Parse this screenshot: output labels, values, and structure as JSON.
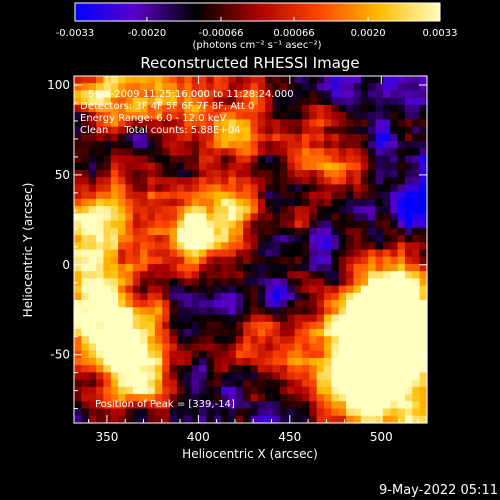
{
  "chart_data": {
    "type": "heatmap",
    "title": "Reconstructed RHESSI Image",
    "xlabel": "Heliocentric X (arcsec)",
    "ylabel": "Heliocentric Y (arcsec)",
    "xlim": [
      332,
      525
    ],
    "ylim": [
      -88,
      105
    ],
    "x_ticks": [
      "350",
      "400",
      "450",
      "500"
    ],
    "x_tick_values": [
      350,
      400,
      450,
      500
    ],
    "y_ticks": [
      "100",
      "50",
      "0",
      "-50"
    ],
    "y_tick_values": [
      100,
      50,
      0,
      -50
    ],
    "colorbar": {
      "ticks": [
        "-0.0033",
        "-0.0020",
        "-0.00066",
        "0.00066",
        "0.0020",
        "0.0033"
      ],
      "tick_values": [
        -0.0033,
        -0.002,
        -0.00066,
        0.00066,
        0.002,
        0.0033
      ],
      "range": [
        -0.0033,
        0.0033
      ],
      "units": "(photons cm⁻² s⁻¹ asec⁻²)",
      "colormap": [
        "#0000ff",
        "#5a00c8",
        "#000000",
        "#aa0000",
        "#ff4400",
        "#ffbb00",
        "#ffffc0"
      ]
    },
    "annotations": {
      "time": "5-Jul-2009 11:25:16.000 to 11:28:24.000",
      "detectors": "Detectors: 3F 4F 5F 6F 7F 8F, Att 0",
      "energy": "Energy Range: 6.0 - 12.0 keV",
      "clean": "Clean     Total counts: 5.88E+04",
      "peak": "Position of Peak = [339,-14]"
    },
    "peak_position": [
      339,
      -14
    ],
    "bright_regions": [
      {
        "x": 339,
        "y": -14,
        "value": 0.0033
      },
      {
        "x": 342,
        "y": 28,
        "value": 0.0028
      },
      {
        "x": 360,
        "y": -42,
        "value": 0.0025
      },
      {
        "x": 365,
        "y": -62,
        "value": 0.0022
      },
      {
        "x": 348,
        "y": 98,
        "value": 0.0018
      },
      {
        "x": 380,
        "y": 96,
        "value": 0.0015
      },
      {
        "x": 392,
        "y": 20,
        "value": 0.0016
      },
      {
        "x": 412,
        "y": 25,
        "value": 0.0019
      },
      {
        "x": 420,
        "y": 80,
        "value": 0.0014
      },
      {
        "x": 470,
        "y": 58,
        "value": 0.0014
      },
      {
        "x": 505,
        "y": -15,
        "value": 0.0024
      },
      {
        "x": 493,
        "y": -40,
        "value": 0.0028
      },
      {
        "x": 510,
        "y": -30,
        "value": 0.003
      },
      {
        "x": 490,
        "y": -55,
        "value": 0.0022
      },
      {
        "x": 488,
        "y": -75,
        "value": 0.0018
      },
      {
        "x": 520,
        "y": -80,
        "value": 0.002
      },
      {
        "x": 440,
        "y": -50,
        "value": 0.001
      }
    ]
  },
  "footer": {
    "date": "9-May-2022 05:11"
  }
}
